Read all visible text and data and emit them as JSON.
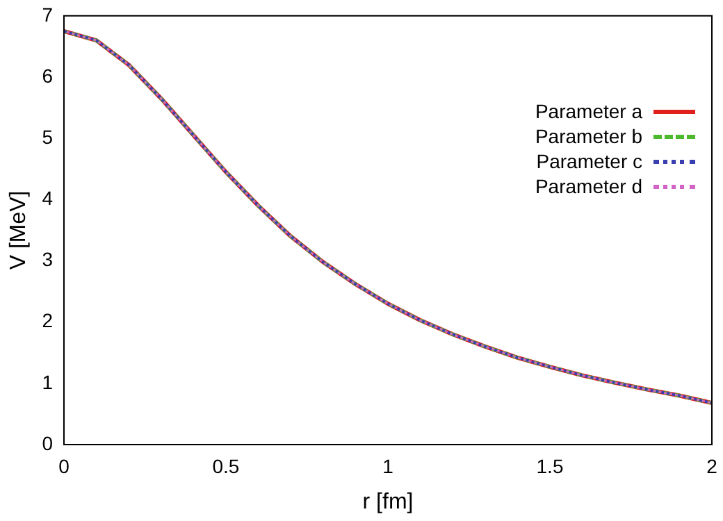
{
  "chart_data": {
    "type": "line",
    "xlabel": "r [fm]",
    "ylabel": "V [MeV]",
    "x": [
      0,
      0.1,
      0.2,
      0.3,
      0.4,
      0.5,
      0.6,
      0.7,
      0.8,
      0.9,
      1.0,
      1.1,
      1.2,
      1.3,
      1.4,
      1.5,
      1.6,
      1.7,
      1.8,
      1.9,
      2.0
    ],
    "xlim": [
      0,
      2
    ],
    "xticks": [
      0,
      0.5,
      1,
      1.5,
      2
    ],
    "ylim": [
      0,
      7
    ],
    "yticks": [
      0,
      1,
      2,
      3,
      4,
      5,
      6,
      7
    ],
    "legend": "top right",
    "marker": "none",
    "series": [
      {
        "name": "Parameter a",
        "color": "#e0201b",
        "line_style": "solid",
        "values": [
          6.75,
          6.6,
          6.2,
          5.65,
          5.05,
          4.45,
          3.9,
          3.4,
          2.98,
          2.62,
          2.3,
          2.03,
          1.8,
          1.6,
          1.42,
          1.27,
          1.13,
          1.01,
          0.9,
          0.8,
          0.68
        ]
      },
      {
        "name": "Parameter b",
        "color": "#4cb82b",
        "line_style": "dashed",
        "values": [
          6.75,
          6.6,
          6.2,
          5.65,
          5.05,
          4.45,
          3.9,
          3.4,
          2.98,
          2.62,
          2.3,
          2.03,
          1.8,
          1.6,
          1.42,
          1.27,
          1.13,
          1.01,
          0.9,
          0.8,
          0.68
        ]
      },
      {
        "name": "Parameter c",
        "color": "#3a3fb0",
        "line_style": "dotted",
        "values": [
          6.75,
          6.6,
          6.2,
          5.65,
          5.05,
          4.45,
          3.9,
          3.4,
          2.98,
          2.62,
          2.3,
          2.03,
          1.8,
          1.6,
          1.42,
          1.27,
          1.13,
          1.01,
          0.9,
          0.8,
          0.68
        ]
      },
      {
        "name": "Parameter d",
        "color": "#d264c8",
        "line_style": "dotted",
        "values": [
          6.75,
          6.6,
          6.2,
          5.65,
          5.05,
          4.45,
          3.9,
          3.4,
          2.98,
          2.62,
          2.3,
          2.03,
          1.8,
          1.6,
          1.42,
          1.27,
          1.13,
          1.01,
          0.9,
          0.8,
          0.68
        ]
      }
    ]
  }
}
